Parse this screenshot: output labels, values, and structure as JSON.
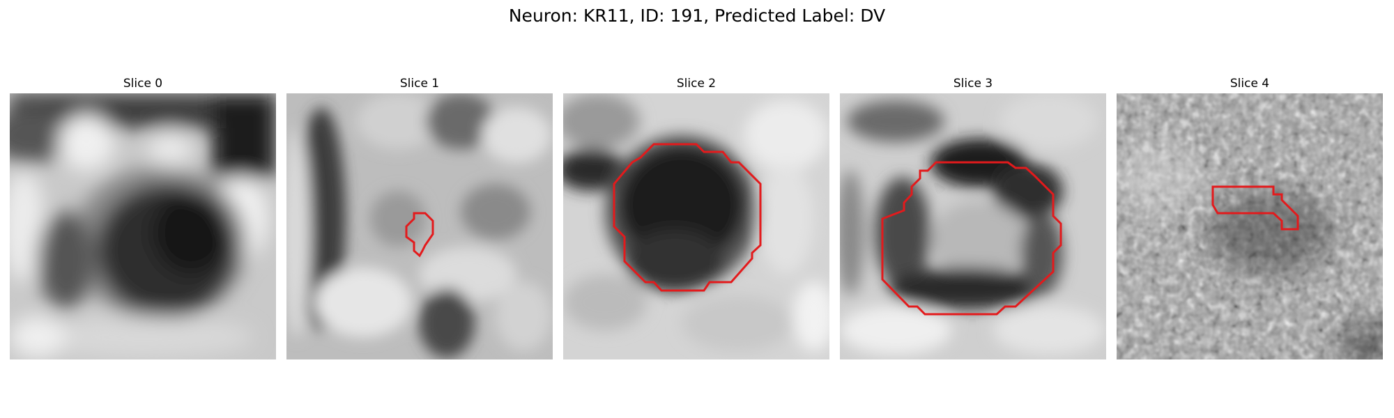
{
  "figure_title": "Neuron: KR11, ID: 191, Predicted Label: DV",
  "contour_color": "#e31a1c",
  "panels": [
    {
      "title": "Slice 0",
      "description": "grayscale microscopy patch showing a dark round cell body with bright surroundings",
      "contour": []
    },
    {
      "title": "Slice 1",
      "description": "grayscale patch with mottled texture and dark band on the left",
      "contour": [
        [
          0.48,
          0.45
        ],
        [
          0.52,
          0.45
        ],
        [
          0.55,
          0.48
        ],
        [
          0.55,
          0.53
        ],
        [
          0.52,
          0.57
        ],
        [
          0.51,
          0.59
        ],
        [
          0.5,
          0.61
        ],
        [
          0.48,
          0.59
        ],
        [
          0.48,
          0.56
        ],
        [
          0.45,
          0.54
        ],
        [
          0.45,
          0.5
        ],
        [
          0.48,
          0.47
        ]
      ]
    },
    {
      "title": "Slice 2",
      "description": "grayscale patch with large dark blob and extension to upper-left",
      "contour": [
        [
          0.34,
          0.19
        ],
        [
          0.5,
          0.19
        ],
        [
          0.53,
          0.22
        ],
        [
          0.6,
          0.22
        ],
        [
          0.63,
          0.26
        ],
        [
          0.66,
          0.26
        ],
        [
          0.74,
          0.34
        ],
        [
          0.74,
          0.57
        ],
        [
          0.71,
          0.6
        ],
        [
          0.71,
          0.62
        ],
        [
          0.63,
          0.71
        ],
        [
          0.55,
          0.71
        ],
        [
          0.53,
          0.74
        ],
        [
          0.37,
          0.74
        ],
        [
          0.34,
          0.71
        ],
        [
          0.31,
          0.71
        ],
        [
          0.23,
          0.63
        ],
        [
          0.23,
          0.54
        ],
        [
          0.19,
          0.5
        ],
        [
          0.19,
          0.34
        ],
        [
          0.26,
          0.26
        ],
        [
          0.29,
          0.24
        ]
      ]
    },
    {
      "title": "Slice 3",
      "description": "grayscale patch with dark ring-shaped cell outline",
      "contour": [
        [
          0.3,
          0.29
        ],
        [
          0.3,
          0.32
        ],
        [
          0.27,
          0.35
        ],
        [
          0.27,
          0.38
        ],
        [
          0.24,
          0.41
        ],
        [
          0.24,
          0.44
        ],
        [
          0.16,
          0.47
        ],
        [
          0.16,
          0.7
        ],
        [
          0.26,
          0.8
        ],
        [
          0.29,
          0.8
        ],
        [
          0.32,
          0.83
        ],
        [
          0.59,
          0.83
        ],
        [
          0.62,
          0.8
        ],
        [
          0.66,
          0.8
        ],
        [
          0.8,
          0.67
        ],
        [
          0.8,
          0.6
        ],
        [
          0.83,
          0.57
        ],
        [
          0.83,
          0.49
        ],
        [
          0.8,
          0.46
        ],
        [
          0.8,
          0.38
        ],
        [
          0.73,
          0.31
        ],
        [
          0.7,
          0.28
        ],
        [
          0.66,
          0.28
        ],
        [
          0.63,
          0.26
        ],
        [
          0.36,
          0.26
        ],
        [
          0.33,
          0.29
        ]
      ]
    },
    {
      "title": "Slice 4",
      "description": "grayscale noisy patch with small elongated region",
      "contour": [
        [
          0.36,
          0.35
        ],
        [
          0.59,
          0.35
        ],
        [
          0.59,
          0.38
        ],
        [
          0.62,
          0.38
        ],
        [
          0.62,
          0.4
        ],
        [
          0.68,
          0.46
        ],
        [
          0.68,
          0.51
        ],
        [
          0.62,
          0.51
        ],
        [
          0.62,
          0.48
        ],
        [
          0.59,
          0.45
        ],
        [
          0.38,
          0.45
        ],
        [
          0.36,
          0.42
        ]
      ]
    }
  ]
}
